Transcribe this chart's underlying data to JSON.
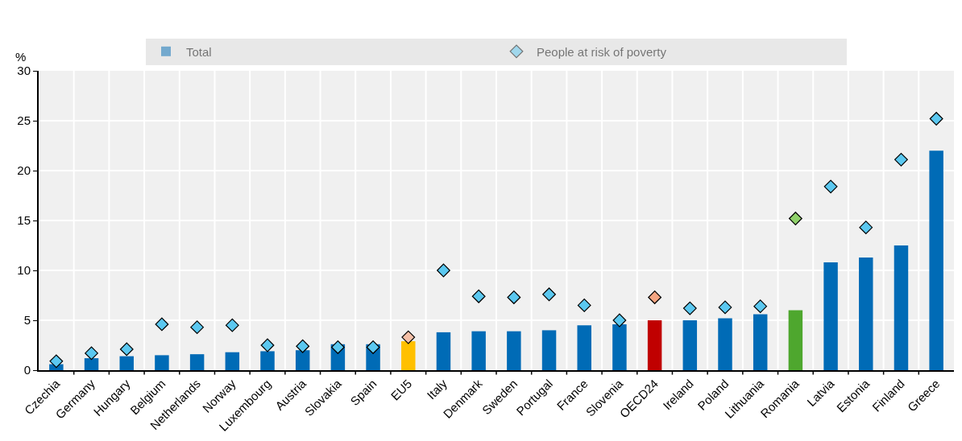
{
  "chart_data": {
    "type": "bar",
    "ylabel": "%",
    "categories": [
      "Czechia",
      "Germany",
      "Hungary",
      "Belgium",
      "Netherlands",
      "Norway",
      "Luxembourg",
      "Austria",
      "Slovakia",
      "Spain",
      "EU5",
      "Italy",
      "Denmark",
      "Sweden",
      "Portugal",
      "France",
      "Slovenia",
      "OECD24",
      "Ireland",
      "Poland",
      "Lithuania",
      "Romania",
      "Latvia",
      "Estonia",
      "Finland",
      "Greece"
    ],
    "series": [
      {
        "name": "Total",
        "color": "#006bb6",
        "colors": [
          "#006bb6",
          "#006bb6",
          "#006bb6",
          "#006bb6",
          "#006bb6",
          "#006bb6",
          "#006bb6",
          "#006bb6",
          "#006bb6",
          "#006bb6",
          "#ffc000",
          "#006bb6",
          "#006bb6",
          "#006bb6",
          "#006bb6",
          "#006bb6",
          "#006bb6",
          "#c00000",
          "#006bb6",
          "#006bb6",
          "#006bb6",
          "#4ea72e",
          "#006bb6",
          "#006bb6",
          "#006bb6",
          "#006bb6"
        ],
        "values": [
          0.6,
          1.2,
          1.4,
          1.5,
          1.6,
          1.8,
          1.9,
          2.0,
          2.6,
          2.6,
          2.9,
          3.8,
          3.9,
          3.9,
          4.0,
          4.5,
          4.6,
          5.0,
          5.0,
          5.2,
          5.6,
          6.0,
          10.8,
          11.3,
          12.5,
          22.0
        ]
      },
      {
        "name": "People at risk of poverty",
        "type": "scatter",
        "marker": "diamond",
        "color": "#5bc8f0",
        "colors": [
          "#5bc8f0",
          "#5bc8f0",
          "#5bc8f0",
          "#5bc8f0",
          "#5bc8f0",
          "#5bc8f0",
          "#5bc8f0",
          "#5bc8f0",
          "#5bc8f0",
          "#5bc8f0",
          "#f4c0a8",
          "#5bc8f0",
          "#5bc8f0",
          "#5bc8f0",
          "#5bc8f0",
          "#5bc8f0",
          "#5bc8f0",
          "#f4a582",
          "#5bc8f0",
          "#5bc8f0",
          "#5bc8f0",
          "#8fd16a",
          "#5bc8f0",
          "#5bc8f0",
          "#5bc8f0",
          "#5bc8f0"
        ],
        "values": [
          0.9,
          1.7,
          2.1,
          4.6,
          4.3,
          4.5,
          2.5,
          2.4,
          2.3,
          2.3,
          3.3,
          10.0,
          7.4,
          7.3,
          7.6,
          6.5,
          5.0,
          7.3,
          6.2,
          6.3,
          6.4,
          15.2,
          18.4,
          14.3,
          21.1,
          25.2
        ]
      }
    ],
    "ylim": [
      0,
      30
    ],
    "yticks": [
      0,
      5,
      10,
      15,
      20,
      25,
      30
    ],
    "grid": true,
    "legend": "top"
  }
}
